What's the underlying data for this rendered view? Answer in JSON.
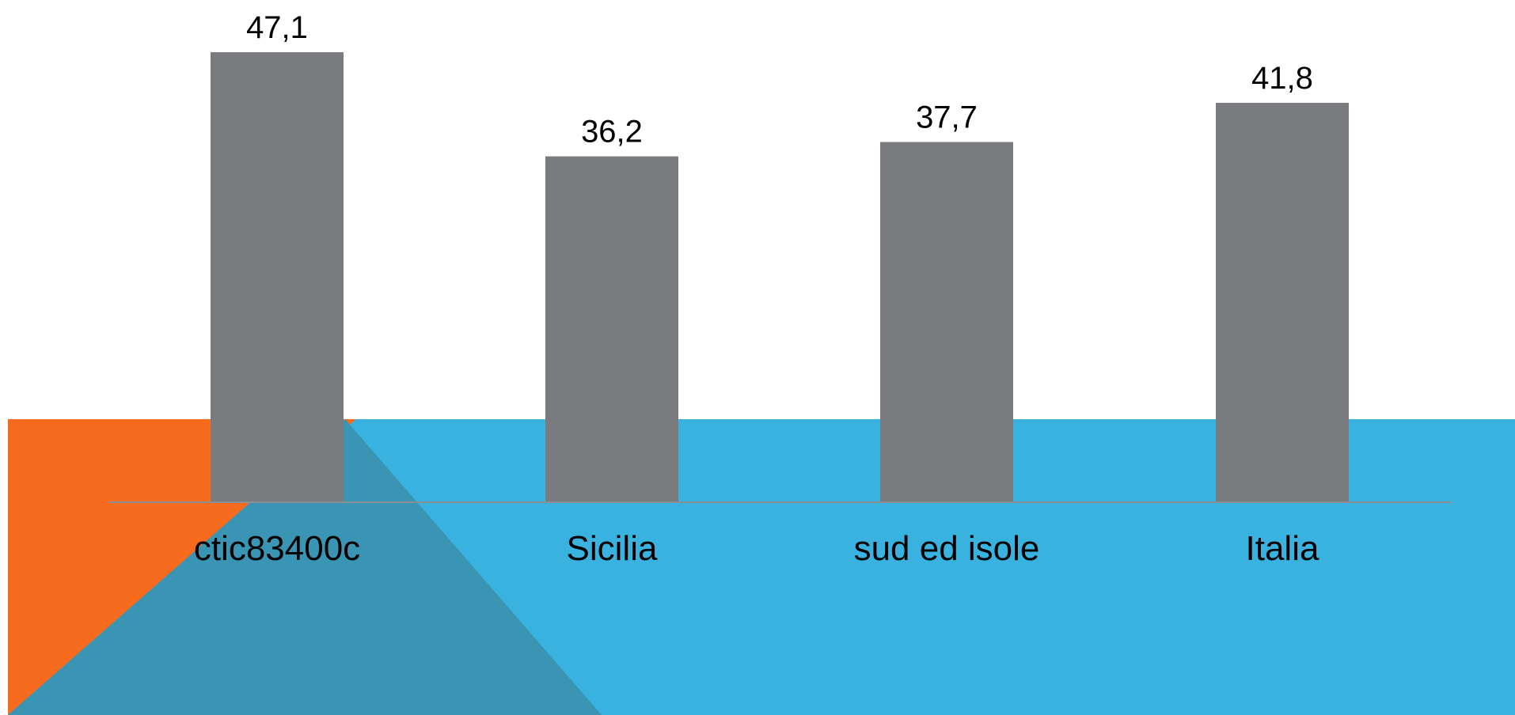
{
  "chart_data": {
    "type": "bar",
    "categories": [
      "ctic83400c",
      "Sicilia",
      "sud ed isole",
      "Italia"
    ],
    "values": [
      47.1,
      36.2,
      37.7,
      41.8
    ],
    "value_labels": [
      "47,1",
      "36,2",
      "37,7",
      "41,8"
    ],
    "title": "",
    "xlabel": "",
    "ylabel": "",
    "ylim": [
      0,
      47.1
    ],
    "grid": false,
    "legend": "none"
  },
  "colors": {
    "bar": "#7a7b7f",
    "axis": "#8a8f94",
    "background": "#ffffff",
    "band_blue": "#3ab2e0",
    "shape_orange": "#f76b1e",
    "shape_teal": "#3a94b4"
  }
}
